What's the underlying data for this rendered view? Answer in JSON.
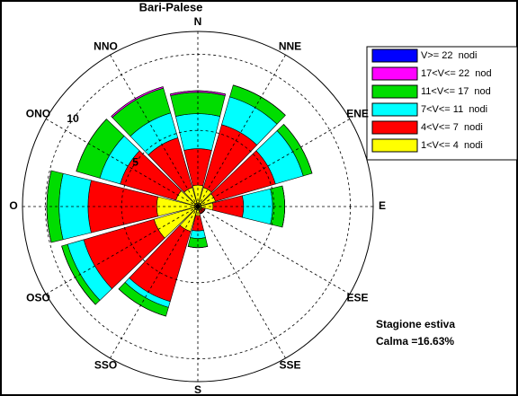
{
  "chart_data": {
    "type": "windrose",
    "title": "Bari-Palese",
    "categories": [
      "N",
      "NNE",
      "ENE",
      "E",
      "ESE",
      "SSE",
      "S",
      "SSO",
      "OSO",
      "O",
      "ONO",
      "NNO"
    ],
    "series": [
      {
        "name": "1<V<= 4  nodi",
        "color": "#ffff00",
        "values": [
          1.4,
          1.3,
          1.2,
          1.0,
          0.3,
          0.3,
          0.6,
          1.7,
          3.0,
          2.7,
          1.5,
          1.3
        ]
      },
      {
        "name": "4<V<= 7  nodi",
        "color": "#ff0000",
        "values": [
          2.4,
          4.3,
          4.1,
          2.0,
          0.2,
          0.2,
          1.0,
          4.8,
          4.8,
          4.5,
          3.8,
          3.4
        ]
      },
      {
        "name": "7<V<= 11  nodi",
        "color": "#00ffff",
        "values": [
          2.3,
          1.9,
          1.9,
          1.9,
          0,
          0,
          0.5,
          0.4,
          1.1,
          1.9,
          1.4,
          1.7
        ]
      },
      {
        "name": "11<V<= 17  nod",
        "color": "#00dd00",
        "values": [
          1.4,
          0.8,
          0.6,
          0.8,
          0,
          0,
          0.6,
          0.6,
          0.4,
          0.8,
          1.6,
          1.7
        ]
      },
      {
        "name": "17<V<= 22  nod",
        "color": "#ff00ff",
        "values": [
          0.1,
          0,
          0,
          0,
          0,
          0,
          0,
          0,
          0,
          0,
          0,
          0.1
        ]
      },
      {
        "name": "V>= 22  nodi",
        "color": "#0000ff",
        "values": [
          0,
          0,
          0,
          0,
          0,
          0,
          0,
          0,
          0,
          0,
          0,
          0
        ]
      }
    ],
    "rlim": [
      0,
      11.5
    ],
    "rticks": [
      5,
      10
    ],
    "annotations": [
      "Stagione estiva",
      "Calma =16.63%"
    ]
  }
}
